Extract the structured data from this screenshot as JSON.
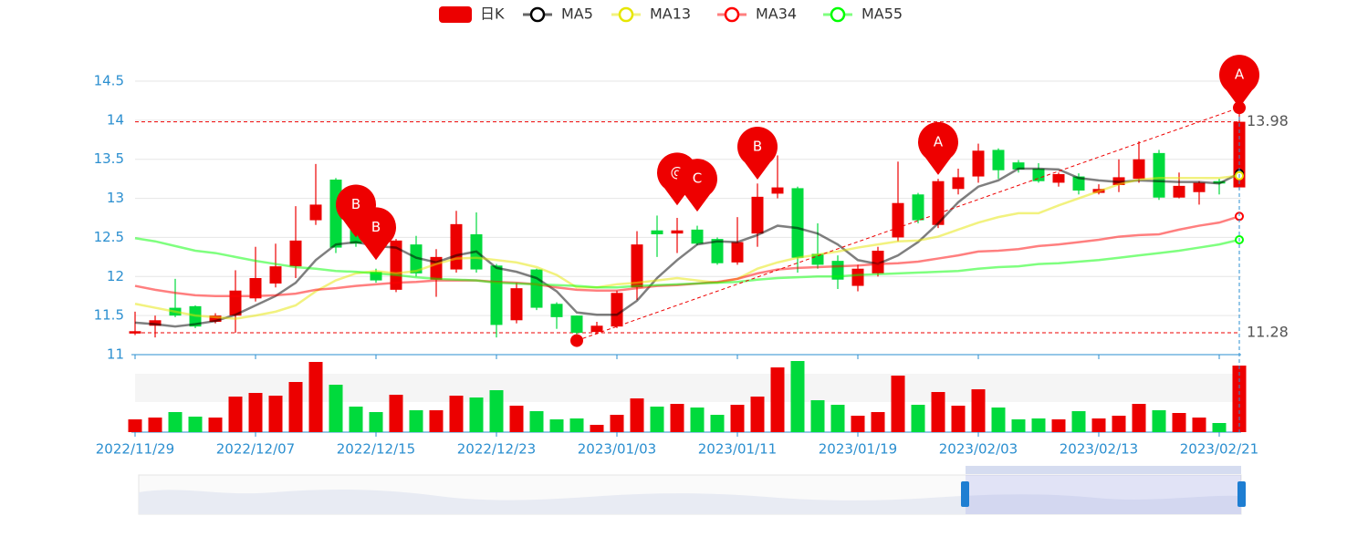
{
  "chart_data": {
    "type": "candlestick",
    "categories": [
      "2022/11/29",
      null,
      null,
      null,
      null,
      null,
      "2022/12/07",
      null,
      null,
      null,
      null,
      null,
      "2022/12/15",
      null,
      null,
      null,
      null,
      null,
      "2022/12/23",
      null,
      null,
      null,
      null,
      null,
      "2023/01/03",
      null,
      null,
      null,
      null,
      null,
      "2023/01/11",
      null,
      null,
      null,
      null,
      null,
      "2023/01/19",
      null,
      null,
      null,
      null,
      null,
      "2023/02/03",
      null,
      null,
      null,
      null,
      null,
      "2023/02/13",
      null,
      null,
      null,
      null,
      null,
      "2023/02/21",
      null
    ],
    "series": [
      {
        "name": "日K",
        "type": "candlestick",
        "up_color": "#ec0000",
        "down_color": "#00da3c",
        "values": [
          [
            11.27,
            11.3,
            11.25,
            11.55
          ],
          [
            11.37,
            11.44,
            11.22,
            11.5
          ],
          [
            11.6,
            11.5,
            11.48,
            11.97
          ],
          [
            11.62,
            11.36,
            11.34,
            11.63
          ],
          [
            11.42,
            11.5,
            11.4,
            11.53
          ],
          [
            11.5,
            11.82,
            11.28,
            12.08
          ],
          [
            11.72,
            11.98,
            11.68,
            12.38
          ],
          [
            11.91,
            12.13,
            11.86,
            12.42
          ],
          [
            12.13,
            12.46,
            11.98,
            12.9
          ],
          [
            12.72,
            12.92,
            12.66,
            13.44
          ],
          [
            13.24,
            12.37,
            12.3,
            13.26
          ],
          [
            12.64,
            12.42,
            12.38,
            12.66
          ],
          [
            12.06,
            11.95,
            11.92,
            12.1
          ],
          [
            11.83,
            12.46,
            11.8,
            12.48
          ],
          [
            12.41,
            12.04,
            12.0,
            12.52
          ],
          [
            11.96,
            12.25,
            11.74,
            12.35
          ],
          [
            12.09,
            12.67,
            12.05,
            12.84
          ],
          [
            12.54,
            12.09,
            12.05,
            12.82
          ],
          [
            12.14,
            11.38,
            11.22,
            12.16
          ],
          [
            11.44,
            11.85,
            11.4,
            11.92
          ],
          [
            12.09,
            11.6,
            11.57,
            12.1
          ],
          [
            11.65,
            11.48,
            11.33,
            11.67
          ],
          [
            11.5,
            11.28,
            11.18,
            11.5
          ],
          [
            11.29,
            11.37,
            11.26,
            11.42
          ],
          [
            11.36,
            11.79,
            11.34,
            11.82
          ],
          [
            11.86,
            12.41,
            11.7,
            12.58
          ],
          [
            12.59,
            12.54,
            12.25,
            12.78
          ],
          [
            12.55,
            12.59,
            12.3,
            12.75
          ],
          [
            12.6,
            12.42,
            12.4,
            12.65
          ],
          [
            12.48,
            12.17,
            12.15,
            12.5
          ],
          [
            12.18,
            12.44,
            12.15,
            12.76
          ],
          [
            12.55,
            13.02,
            12.38,
            13.19
          ],
          [
            13.06,
            13.14,
            13.0,
            13.55
          ],
          [
            13.13,
            12.24,
            12.05,
            13.15
          ],
          [
            12.29,
            12.15,
            12.1,
            12.68
          ],
          [
            12.2,
            11.96,
            11.84,
            12.27
          ],
          [
            11.88,
            12.1,
            11.81,
            12.15
          ],
          [
            12.04,
            12.33,
            12.0,
            12.38
          ],
          [
            12.5,
            12.94,
            12.45,
            13.47
          ],
          [
            13.05,
            12.72,
            12.68,
            13.07
          ],
          [
            12.66,
            13.22,
            12.62,
            13.25
          ],
          [
            13.12,
            13.27,
            13.05,
            13.38
          ],
          [
            13.28,
            13.61,
            13.2,
            13.7
          ],
          [
            13.62,
            13.36,
            13.25,
            13.64
          ],
          [
            13.46,
            13.37,
            13.33,
            13.49
          ],
          [
            13.38,
            13.22,
            13.2,
            13.45
          ],
          [
            13.2,
            13.31,
            13.15,
            13.33
          ],
          [
            13.28,
            13.1,
            13.05,
            13.32
          ],
          [
            13.07,
            13.12,
            13.05,
            13.18
          ],
          [
            13.17,
            13.27,
            13.08,
            13.5
          ],
          [
            13.25,
            13.5,
            13.2,
            13.73
          ],
          [
            13.58,
            13.01,
            12.98,
            13.62
          ],
          [
            13.01,
            13.16,
            13.0,
            13.33
          ],
          [
            13.08,
            13.2,
            12.92,
            13.22
          ],
          [
            13.22,
            13.19,
            13.05,
            13.25
          ],
          [
            13.14,
            13.98,
            13.12,
            14.16
          ]
        ],
        "volume": [
          14,
          16,
          22,
          17,
          16,
          39,
          43,
          40,
          55,
          77,
          52,
          28,
          22,
          41,
          24,
          24,
          40,
          38,
          46,
          29,
          23,
          14,
          15,
          8,
          19,
          37,
          28,
          31,
          27,
          19,
          30,
          39,
          71,
          78,
          35,
          30,
          18,
          22,
          62,
          30,
          44,
          29,
          47,
          27,
          14,
          15,
          14,
          23,
          15,
          18,
          31,
          24,
          21,
          16,
          10,
          73
        ]
      },
      {
        "name": "MA5",
        "color": "#000000",
        "values": [
          11.41,
          11.39,
          11.36,
          11.39,
          11.43,
          11.51,
          11.63,
          11.75,
          11.92,
          12.21,
          12.41,
          12.44,
          12.39,
          12.37,
          12.24,
          12.18,
          12.27,
          12.32,
          12.11,
          12.06,
          11.98,
          11.81,
          11.54,
          11.51,
          11.51,
          11.69,
          11.98,
          12.21,
          12.41,
          12.45,
          12.44,
          12.53,
          12.65,
          12.62,
          12.55,
          12.41,
          12.21,
          12.16,
          12.27,
          12.44,
          12.68,
          12.95,
          13.15,
          13.23,
          13.38,
          13.38,
          13.37,
          13.26,
          13.23,
          13.21,
          13.23,
          13.22,
          13.21,
          13.21,
          13.19,
          13.32
        ]
      },
      {
        "name": "MA13",
        "color": "#e6e600",
        "values": [
          11.65,
          11.6,
          11.55,
          11.5,
          11.48,
          11.46,
          11.5,
          11.55,
          11.63,
          11.81,
          11.95,
          12.04,
          12.07,
          12.04,
          12.07,
          12.16,
          12.23,
          12.24,
          12.21,
          12.18,
          12.12,
          12.02,
          11.86,
          11.86,
          11.9,
          11.92,
          11.95,
          11.98,
          11.95,
          11.92,
          11.97,
          12.1,
          12.18,
          12.24,
          12.28,
          12.32,
          12.37,
          12.41,
          12.45,
          12.46,
          12.51,
          12.6,
          12.69,
          12.76,
          12.81,
          12.81,
          12.91,
          13.0,
          13.09,
          13.18,
          13.24,
          13.26,
          13.26,
          13.26,
          13.26,
          13.29
        ]
      },
      {
        "name": "MA34",
        "color": "#ff0000",
        "values": [
          11.88,
          11.83,
          11.79,
          11.76,
          11.75,
          11.75,
          11.75,
          11.76,
          11.78,
          11.83,
          11.85,
          11.88,
          11.9,
          11.92,
          11.93,
          11.95,
          11.95,
          11.95,
          11.93,
          11.92,
          11.9,
          11.86,
          11.83,
          11.82,
          11.82,
          11.85,
          11.88,
          11.89,
          11.91,
          11.93,
          11.97,
          12.04,
          12.09,
          12.11,
          12.12,
          12.13,
          12.14,
          12.16,
          12.17,
          12.19,
          12.23,
          12.27,
          12.32,
          12.33,
          12.35,
          12.39,
          12.41,
          12.44,
          12.47,
          12.51,
          12.53,
          12.54,
          12.6,
          12.65,
          12.69,
          12.77
        ]
      },
      {
        "name": "MA55",
        "color": "#00ff00",
        "values": [
          12.49,
          12.45,
          12.39,
          12.33,
          12.3,
          12.25,
          12.2,
          12.16,
          12.12,
          12.1,
          12.07,
          12.06,
          12.04,
          12.02,
          11.99,
          11.97,
          11.96,
          11.95,
          11.92,
          11.91,
          11.9,
          11.89,
          11.88,
          11.86,
          11.86,
          11.88,
          11.89,
          11.9,
          11.91,
          11.92,
          11.93,
          11.96,
          11.98,
          11.99,
          12.0,
          12.0,
          12.02,
          12.03,
          12.04,
          12.05,
          12.06,
          12.07,
          12.1,
          12.12,
          12.13,
          12.16,
          12.17,
          12.19,
          12.21,
          12.24,
          12.27,
          12.3,
          12.33,
          12.37,
          12.41,
          12.47
        ]
      }
    ],
    "line_opacity": 0.5,
    "ylim": [
      11,
      14.5
    ],
    "yticks": [
      11,
      11.5,
      12,
      12.5,
      13,
      13.5,
      14,
      14.5
    ],
    "grid": true,
    "legend": "top",
    "mark_lines": [
      13.98,
      11.28
    ],
    "trend": {
      "start_index": 22,
      "start_value": 11.18,
      "end_index": 55,
      "end_value": 14.16
    },
    "mark_points": [
      {
        "label": "B",
        "index": 11,
        "value": 12.5
      },
      {
        "label": "B",
        "index": 12,
        "value": 12.21
      },
      {
        "label": "@",
        "index": 27,
        "value": 12.91
      },
      {
        "label": "C",
        "index": 28,
        "value": 12.83
      },
      {
        "label": "B",
        "index": 31,
        "value": 13.24
      },
      {
        "label": "A",
        "index": 40,
        "value": 13.3
      },
      {
        "label": "A",
        "index": 55,
        "value": 14.16
      }
    ]
  }
}
